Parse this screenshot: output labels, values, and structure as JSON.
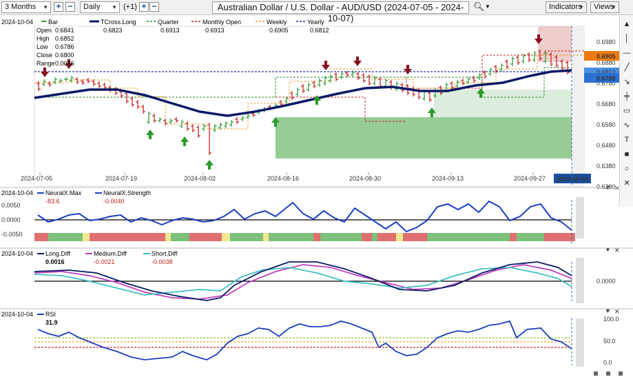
{
  "toolbar": {
    "period": "3 Months",
    "interval": "Daily",
    "extra": "(+1)",
    "title": "Australian Dollar / U.S. Dollar - AUD/USD (2024-07-05 - 2024-10-07)",
    "indicators": "Indicators",
    "views": "Views"
  },
  "main": {
    "date": "2024-10-04",
    "bar_label": "Bar",
    "ohlc": [
      {
        "k": "Open",
        "v": "0.6841"
      },
      {
        "k": "High",
        "v": "0.6852"
      },
      {
        "k": "Low",
        "v": "0.6786"
      },
      {
        "k": "Close",
        "v": "0.6800"
      },
      {
        "k": "Range",
        "v": "0.0066"
      }
    ],
    "legend": [
      {
        "name": "TCross.Long",
        "value": "0.6823",
        "color": "#0a1a66"
      },
      {
        "name": "Quarter",
        "value": "0.6913",
        "color": "#2a8a2a"
      },
      {
        "name": "Monthly Open",
        "value": "0.6913",
        "color": "#d02020"
      },
      {
        "name": "Weekly",
        "value": "0.6905",
        "color": "#e8a030"
      },
      {
        "name": "Yearly",
        "value": "0.6812",
        "color": "#2030a0"
      }
    ],
    "y_ticks": [
      "0.6980",
      "0.6880",
      "0.6780",
      "0.6680",
      "0.6580",
      "0.6480",
      "0.6380",
      "0.6280"
    ],
    "x_ticks": [
      "2024-07-05",
      "2024-07-19",
      "2024-08-02",
      "2024-08-16",
      "2024-08-30",
      "2024-09-13",
      "2024-09-27"
    ],
    "current_date": "2024-10-04",
    "price_tag_orange": "0.6905",
    "price_tag_blue": "0.6789",
    "price_tag_hidden": "0.6812"
  },
  "neural": {
    "date": "2024-10-04",
    "max_name": "NeuralX.Max",
    "max_val": "-83.6",
    "str_name": "NeuralX.Strength",
    "str_val": "-0.0040",
    "ticks": [
      "0.0050",
      "0.0000",
      "-0.0050"
    ]
  },
  "diff": {
    "date": "2024-10-04",
    "long_name": "Long.Diff",
    "long_val": "0.0016",
    "med_name": "Medium.Diff",
    "med_val": "-0.0021",
    "short_name": "Short.Diff",
    "short_val": "-0.0038",
    "tick": "0.0000"
  },
  "rsi": {
    "date": "2024-10-04",
    "name": "RSI",
    "val": "31.9",
    "ticks": [
      "100.0",
      "50.0",
      "0.0"
    ]
  },
  "tools": [
    "up-icon",
    "line-icon",
    "hline-icon",
    "trend-icon",
    "fib-icon",
    "cross-icon",
    "rect-icon",
    "curve-icon",
    "text-icon",
    "square-icon",
    "circle-icon",
    "close-icon"
  ],
  "colors": {
    "tcross": "#0a1a66",
    "quarter": "#2a8a2a",
    "monthly": "#d02020",
    "weekly": "#e8a030",
    "yearly": "#2030a0",
    "bull": "#2a9a2a",
    "bear": "#c01818"
  }
}
